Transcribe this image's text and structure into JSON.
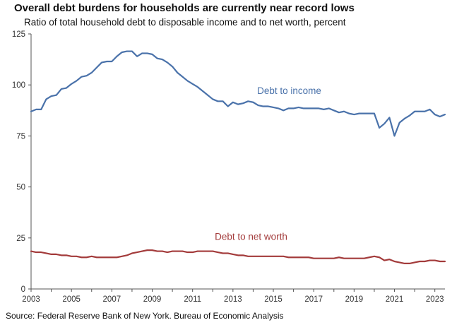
{
  "chart_data": {
    "type": "line",
    "title": "Overall debt burdens for households are currently near record lows",
    "subtitle": "Ratio of total household debt to disposable income and to net worth, percent",
    "source": "Source: Federal Reserve Bank of New York. Bureau of Economic Analysis",
    "xlabel": "",
    "ylabel": "",
    "xlim": [
      2003,
      2023.5
    ],
    "ylim": [
      0,
      125
    ],
    "y_ticks": [
      0,
      25,
      50,
      75,
      100,
      125
    ],
    "x_ticks": [
      2003,
      2005,
      2007,
      2009,
      2011,
      2013,
      2015,
      2017,
      2019,
      2021,
      2023
    ],
    "grid": false,
    "series": [
      {
        "name": "Debt to income",
        "label": "Debt to income",
        "color": "#4a72aa",
        "x": [
          2003.0,
          2003.25,
          2003.5,
          2003.75,
          2004.0,
          2004.25,
          2004.5,
          2004.75,
          2005.0,
          2005.25,
          2005.5,
          2005.75,
          2006.0,
          2006.25,
          2006.5,
          2006.75,
          2007.0,
          2007.25,
          2007.5,
          2007.75,
          2008.0,
          2008.25,
          2008.5,
          2008.75,
          2009.0,
          2009.25,
          2009.5,
          2009.75,
          2010.0,
          2010.25,
          2010.5,
          2010.75,
          2011.0,
          2011.25,
          2011.5,
          2011.75,
          2012.0,
          2012.25,
          2012.5,
          2012.75,
          2013.0,
          2013.25,
          2013.5,
          2013.75,
          2014.0,
          2014.25,
          2014.5,
          2014.75,
          2015.0,
          2015.25,
          2015.5,
          2015.75,
          2016.0,
          2016.25,
          2016.5,
          2016.75,
          2017.0,
          2017.25,
          2017.5,
          2017.75,
          2018.0,
          2018.25,
          2018.5,
          2018.75,
          2019.0,
          2019.25,
          2019.5,
          2019.75,
          2020.0,
          2020.25,
          2020.5,
          2020.75,
          2021.0,
          2021.25,
          2021.5,
          2021.75,
          2022.0,
          2022.25,
          2022.5,
          2022.75,
          2023.0,
          2023.25,
          2023.5
        ],
        "values": [
          87,
          88,
          88,
          93,
          94.5,
          95,
          98,
          98.5,
          100.5,
          102,
          104,
          104.5,
          106,
          108.5,
          111,
          111.5,
          111.5,
          114,
          116,
          116.5,
          116.5,
          114,
          115.5,
          115.5,
          115,
          113,
          112.5,
          111,
          109,
          106,
          104,
          102,
          100.5,
          99,
          97,
          95,
          93,
          92,
          92,
          89.5,
          91.5,
          90.5,
          91,
          92,
          91.5,
          90,
          89.5,
          89.5,
          89,
          88.5,
          87.5,
          88.5,
          88.5,
          89,
          88.5,
          88.5,
          88.5,
          88.5,
          88,
          88.5,
          87.5,
          86.5,
          87,
          86,
          85.5,
          86,
          86,
          86,
          86,
          79,
          81,
          84,
          75,
          81.5,
          83.5,
          85,
          87,
          87,
          87,
          88,
          85.5,
          84.5,
          85.5
        ]
      },
      {
        "name": "Debt to net worth",
        "label": "Debt to net worth",
        "color": "#a33b3b",
        "x": [
          2003.0,
          2003.25,
          2003.5,
          2003.75,
          2004.0,
          2004.25,
          2004.5,
          2004.75,
          2005.0,
          2005.25,
          2005.5,
          2005.75,
          2006.0,
          2006.25,
          2006.5,
          2006.75,
          2007.0,
          2007.25,
          2007.5,
          2007.75,
          2008.0,
          2008.25,
          2008.5,
          2008.75,
          2009.0,
          2009.25,
          2009.5,
          2009.75,
          2010.0,
          2010.25,
          2010.5,
          2010.75,
          2011.0,
          2011.25,
          2011.5,
          2011.75,
          2012.0,
          2012.25,
          2012.5,
          2012.75,
          2013.0,
          2013.25,
          2013.5,
          2013.75,
          2014.0,
          2014.25,
          2014.5,
          2014.75,
          2015.0,
          2015.25,
          2015.5,
          2015.75,
          2016.0,
          2016.25,
          2016.5,
          2016.75,
          2017.0,
          2017.25,
          2017.5,
          2017.75,
          2018.0,
          2018.25,
          2018.5,
          2018.75,
          2019.0,
          2019.25,
          2019.5,
          2019.75,
          2020.0,
          2020.25,
          2020.5,
          2020.75,
          2021.0,
          2021.25,
          2021.5,
          2021.75,
          2022.0,
          2022.25,
          2022.5,
          2022.75,
          2023.0,
          2023.25,
          2023.5
        ],
        "values": [
          18.5,
          18,
          18,
          17.5,
          17,
          17,
          16.5,
          16.5,
          16,
          16,
          15.5,
          15.5,
          16,
          15.5,
          15.5,
          15.5,
          15.5,
          15.5,
          16,
          16.5,
          17.5,
          18,
          18.5,
          19,
          19,
          18.5,
          18.5,
          18,
          18.5,
          18.5,
          18.5,
          18,
          18,
          18.5,
          18.5,
          18.5,
          18.5,
          18,
          17.5,
          17.5,
          17,
          16.5,
          16.5,
          16,
          16,
          16,
          16,
          16,
          16,
          16,
          16,
          15.5,
          15.5,
          15.5,
          15.5,
          15.5,
          15,
          15,
          15,
          15,
          15,
          15.5,
          15,
          15,
          15,
          15,
          15,
          15.5,
          16,
          15.5,
          14,
          14.5,
          13.5,
          13,
          12.5,
          12.5,
          13,
          13.5,
          13.5,
          14,
          14,
          13.5,
          13.5
        ]
      }
    ]
  }
}
